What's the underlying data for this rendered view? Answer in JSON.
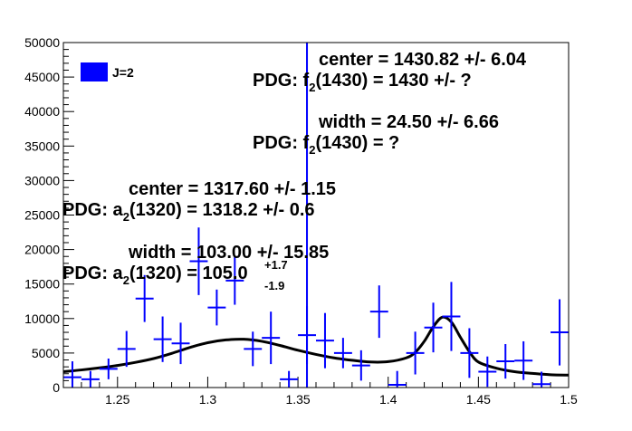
{
  "chart_data": {
    "type": "scatter",
    "title": "",
    "xlabel": "",
    "ylabel": "",
    "xlim": [
      1.22,
      1.5
    ],
    "ylim": [
      0,
      50000
    ],
    "x_ticks": [
      1.25,
      1.3,
      1.35,
      1.4,
      1.45,
      1.5
    ],
    "x_tick_labels": [
      "1.25",
      "1.3",
      "1.35",
      "1.4",
      "1.45",
      "1.5"
    ],
    "y_ticks": [
      0,
      5000,
      10000,
      15000,
      20000,
      25000,
      30000,
      35000,
      40000,
      45000,
      50000
    ],
    "y_tick_labels": [
      "0",
      "5000",
      "10000",
      "15000",
      "20000",
      "25000",
      "30000",
      "35000",
      "40000",
      "45000",
      "50000"
    ],
    "bin_width": 0.01,
    "legend": {
      "position": "top-left",
      "entries": [
        {
          "label": "J=2",
          "color": "#0000ff"
        }
      ]
    },
    "series": [
      {
        "name": "J=2",
        "color": "#0000ff",
        "x": [
          1.225,
          1.235,
          1.245,
          1.255,
          1.265,
          1.275,
          1.285,
          1.295,
          1.305,
          1.315,
          1.325,
          1.335,
          1.345,
          1.355,
          1.365,
          1.375,
          1.385,
          1.395,
          1.405,
          1.415,
          1.425,
          1.435,
          1.445,
          1.455,
          1.465,
          1.475,
          1.485,
          1.495
        ],
        "y": [
          1500,
          1200,
          2700,
          5600,
          12900,
          7000,
          6400,
          18300,
          11600,
          15500,
          5600,
          7200,
          1200,
          7600,
          6800,
          5000,
          3200,
          11000,
          400,
          5000,
          8700,
          10300,
          5000,
          2300,
          3800,
          3900,
          500,
          8000
        ],
        "yerr": [
          2300,
          1200,
          1500,
          2600,
          3400,
          3300,
          3000,
          4900,
          2600,
          3500,
          2500,
          3800,
          1200,
          4200,
          4000,
          2200,
          2200,
          3800,
          2000,
          3100,
          3600,
          5000,
          3600,
          2200,
          2500,
          2800,
          1800,
          4800
        ]
      },
      {
        "name": "",
        "style": "line",
        "color": "#000000",
        "x": [
          1.22,
          1.23,
          1.24,
          1.25,
          1.26,
          1.27,
          1.28,
          1.29,
          1.3,
          1.31,
          1.32,
          1.33,
          1.34,
          1.35,
          1.36,
          1.37,
          1.38,
          1.39,
          1.4,
          1.41,
          1.415,
          1.42,
          1.425,
          1.43,
          1.435,
          1.44,
          1.445,
          1.45,
          1.46,
          1.47,
          1.48,
          1.49,
          1.5
        ],
        "y": [
          2300,
          2550,
          2850,
          3200,
          3650,
          4200,
          4950,
          5800,
          6500,
          6900,
          7000,
          6700,
          6100,
          5400,
          4800,
          4300,
          3950,
          3700,
          3750,
          4300,
          5100,
          6700,
          8800,
          10200,
          9500,
          7300,
          5200,
          3700,
          2800,
          2300,
          2050,
          1850,
          1800
        ]
      }
    ],
    "markers": [
      {
        "type": "vertical-line",
        "x": 1.355,
        "color": "#0000ff"
      }
    ],
    "annotations": {
      "f2_center": "center  = 1430.82 +/- 6.04",
      "f2_pdg_center_pre": "PDG: f",
      "f2_pdg_center_sub": "2",
      "f2_pdg_center_post": "(1430)  = 1430   +/- ?",
      "f2_width": "width   =  24.50 +/- 6.66",
      "f2_pdg_width_pre": "PDG: f",
      "f2_pdg_width_sub": "2",
      "f2_pdg_width_post": "(1430)  =  ?",
      "a2_center": "center  = 1317.60 +/- 1.15",
      "a2_pdg_center_pre": "PDG: a",
      "a2_pdg_center_sub": "2",
      "a2_pdg_center_post": "(1320) = 1318.2   +/-  0.6",
      "a2_width": "width   = 103.00 +/- 15.85",
      "a2_pdg_width_pre": "PDG: a",
      "a2_pdg_width_sub": "2",
      "a2_pdg_width_post": "(1320) = 105.0",
      "a2_pdg_width_sup": "+1.7",
      "a2_pdg_width_low": "-1.9"
    }
  }
}
